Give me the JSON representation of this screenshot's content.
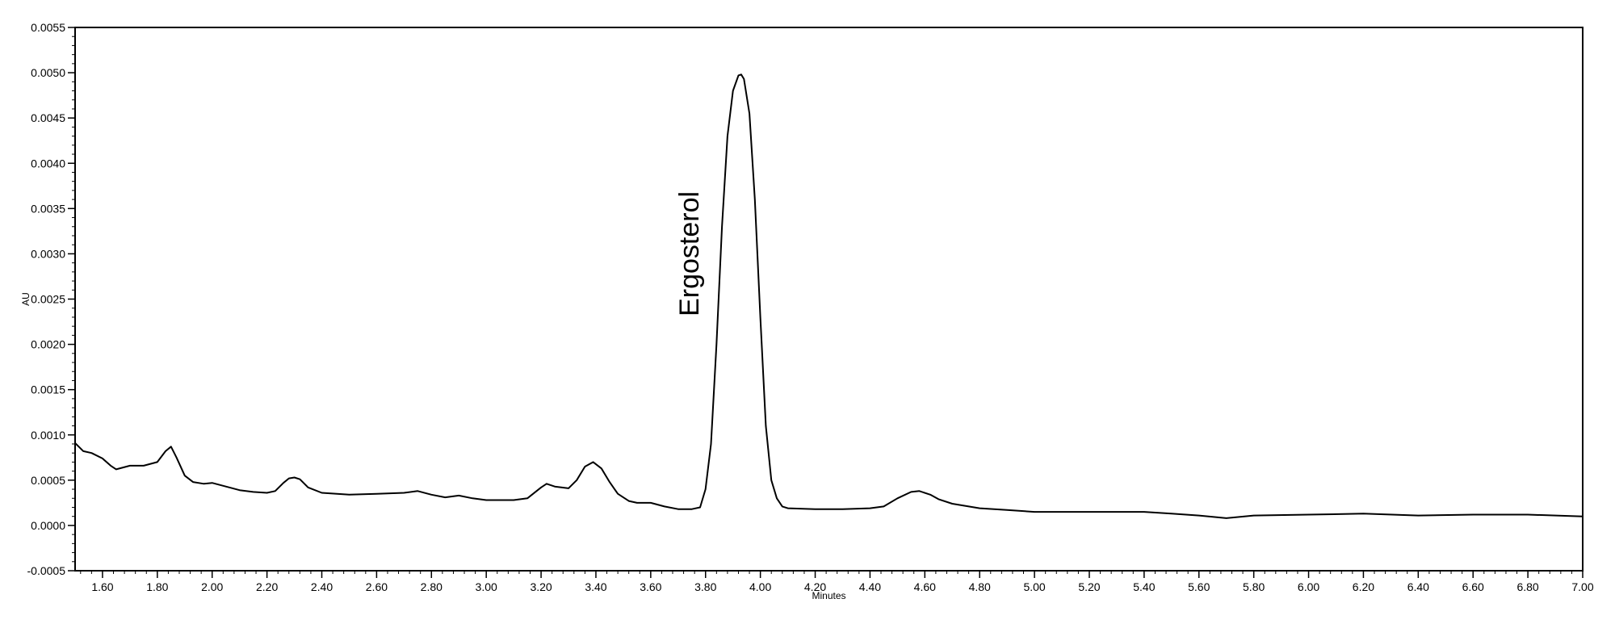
{
  "chart_data": {
    "type": "line",
    "title": "",
    "xlabel": "Minutes",
    "ylabel": "AU",
    "xlim": [
      1.5,
      7.0
    ],
    "ylim": [
      -0.0005,
      0.0055
    ],
    "grid": false,
    "legend": "none",
    "line_color": "#000000",
    "x_ticks": [
      "1.60",
      "1.80",
      "2.00",
      "2.20",
      "2.40",
      "2.60",
      "2.80",
      "3.00",
      "3.20",
      "3.40",
      "3.60",
      "3.80",
      "4.00",
      "4.20",
      "4.40",
      "4.60",
      "4.80",
      "5.00",
      "5.20",
      "5.40",
      "5.60",
      "5.80",
      "6.00",
      "6.20",
      "6.40",
      "6.60",
      "6.80",
      "7.00"
    ],
    "y_ticks": [
      "-0.0005",
      "0.0000",
      "0.0005",
      "0.0010",
      "0.0015",
      "0.0020",
      "0.0025",
      "0.0030",
      "0.0035",
      "0.0040",
      "0.0045",
      "0.0050",
      "0.0055"
    ],
    "annotations": [
      {
        "text": "Ergosterol",
        "x": 3.93,
        "y": 0.005
      }
    ],
    "series": [
      {
        "x": [
          1.5,
          1.53,
          1.56,
          1.6,
          1.63,
          1.65,
          1.7,
          1.75,
          1.8,
          1.83,
          1.85,
          1.87,
          1.9,
          1.93,
          1.97,
          2.0,
          2.05,
          2.1,
          2.15,
          2.2,
          2.23,
          2.26,
          2.28,
          2.3,
          2.32,
          2.35,
          2.4,
          2.5,
          2.6,
          2.7,
          2.75,
          2.8,
          2.85,
          2.9,
          2.95,
          3.0,
          3.05,
          3.1,
          3.15,
          3.2,
          3.22,
          3.25,
          3.3,
          3.33,
          3.36,
          3.39,
          3.42,
          3.45,
          3.48,
          3.52,
          3.55,
          3.6,
          3.65,
          3.7,
          3.75,
          3.78,
          3.8,
          3.82,
          3.84,
          3.86,
          3.88,
          3.9,
          3.92,
          3.93,
          3.94,
          3.96,
          3.98,
          4.0,
          4.02,
          4.04,
          4.06,
          4.08,
          4.1,
          4.2,
          4.3,
          4.4,
          4.45,
          4.5,
          4.55,
          4.58,
          4.62,
          4.65,
          4.7,
          4.8,
          4.9,
          5.0,
          5.2,
          5.4,
          5.5,
          5.6,
          5.7,
          5.8,
          6.0,
          6.2,
          6.4,
          6.6,
          6.8,
          7.0
        ],
        "y": [
          0.00091,
          0.00082,
          0.0008,
          0.00074,
          0.00066,
          0.00062,
          0.00066,
          0.00066,
          0.0007,
          0.00082,
          0.00087,
          0.00075,
          0.00055,
          0.00048,
          0.00046,
          0.00047,
          0.00043,
          0.00039,
          0.00037,
          0.00036,
          0.00038,
          0.00047,
          0.00052,
          0.00053,
          0.00051,
          0.00042,
          0.00036,
          0.00034,
          0.00035,
          0.00036,
          0.00038,
          0.00034,
          0.00031,
          0.00033,
          0.0003,
          0.00028,
          0.00028,
          0.00028,
          0.0003,
          0.00042,
          0.00046,
          0.00043,
          0.00041,
          0.0005,
          0.00065,
          0.0007,
          0.00063,
          0.00048,
          0.00035,
          0.00027,
          0.00025,
          0.00025,
          0.00021,
          0.00018,
          0.00018,
          0.0002,
          0.0004,
          0.0009,
          0.002,
          0.0033,
          0.0043,
          0.0048,
          0.00497,
          0.00498,
          0.00493,
          0.00455,
          0.0036,
          0.0023,
          0.0011,
          0.0005,
          0.0003,
          0.00021,
          0.00019,
          0.00018,
          0.00018,
          0.00019,
          0.00021,
          0.0003,
          0.00037,
          0.00038,
          0.00034,
          0.00029,
          0.00024,
          0.00019,
          0.00017,
          0.00015,
          0.00015,
          0.00015,
          0.00013,
          0.00011,
          8e-05,
          0.00011,
          0.00012,
          0.00013,
          0.00011,
          0.00012,
          0.00012,
          0.0001
        ]
      }
    ]
  }
}
